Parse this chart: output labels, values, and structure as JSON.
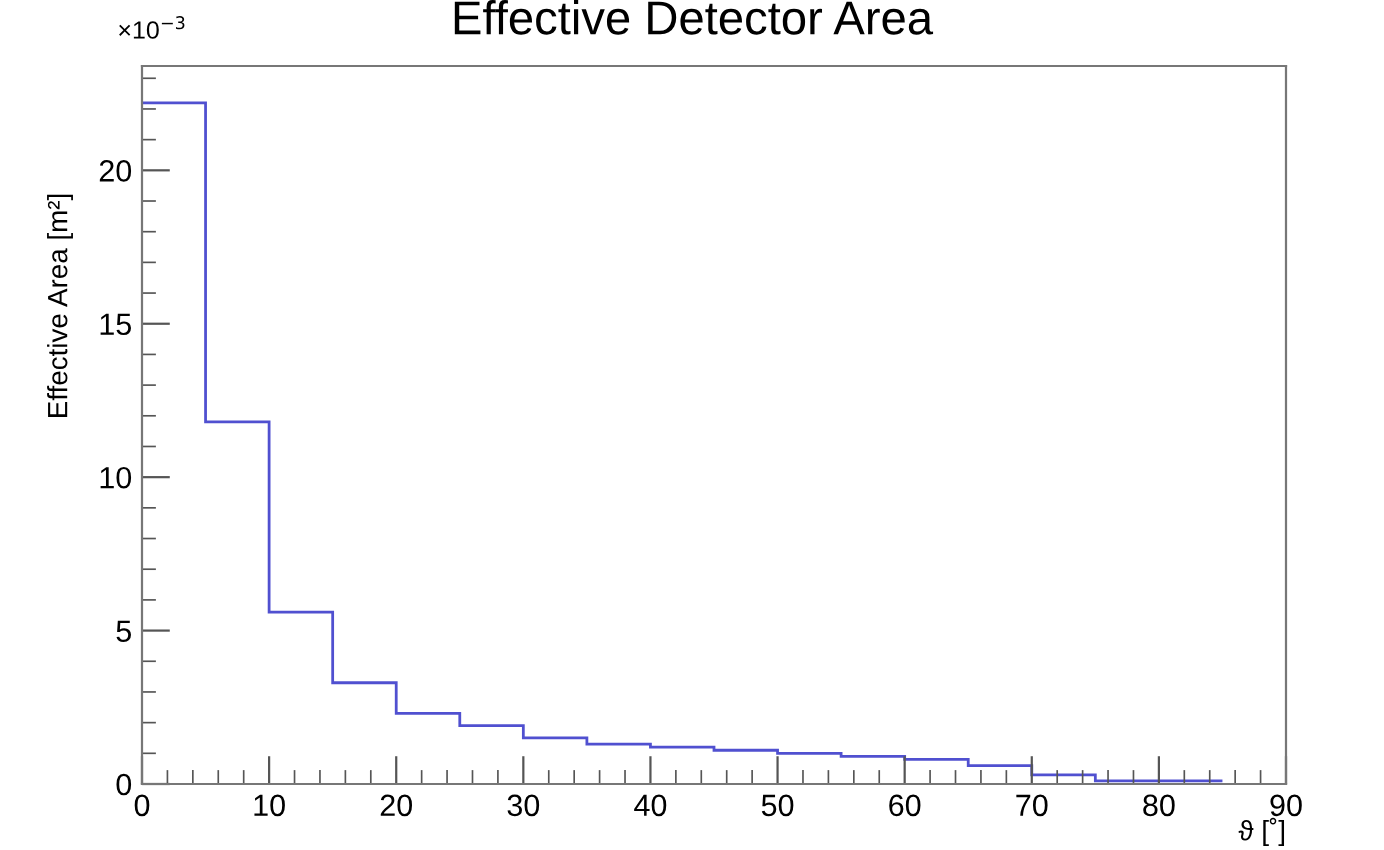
{
  "chart_data": {
    "type": "histogram",
    "title": "Effective Detector Area",
    "xlabel": "ϑ [˚]",
    "ylabel": "Effective Area [m²]",
    "bins": [
      0,
      5,
      10,
      15,
      20,
      25,
      30,
      35,
      40,
      45,
      50,
      55,
      60,
      65,
      70,
      75,
      80,
      85
    ],
    "values": [
      22.2,
      11.8,
      5.6,
      3.3,
      2.3,
      1.9,
      1.5,
      1.3,
      1.2,
      1.1,
      1.0,
      0.9,
      0.8,
      0.6,
      0.3,
      0.1,
      0.1
    ],
    "color": "#5050d0",
    "xlim": [
      0,
      90
    ],
    "xticks": [
      0,
      10,
      20,
      30,
      40,
      50,
      60,
      70,
      80,
      90
    ],
    "ylim": [
      0,
      23.4
    ],
    "yticks": [
      0,
      5,
      10,
      15,
      20
    ],
    "annotations": [
      "×10$^{−3}$"
    ],
    "grid": false,
    "legend": false
  }
}
